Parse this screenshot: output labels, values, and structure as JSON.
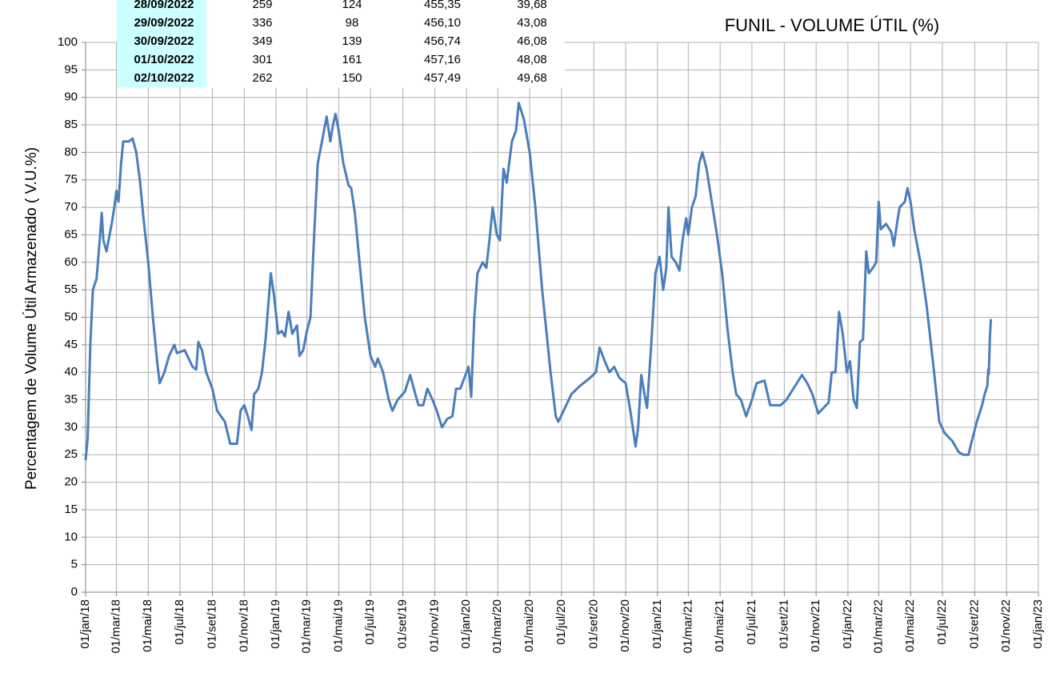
{
  "chart_data": {
    "type": "line",
    "title": "FUNIL - VOLUME ÚTIL (%)",
    "y_label": "Percentagem de Volume Útil Armazenado ( V.U.%)",
    "xlim": [
      "2018-01-01",
      "2023-01-01"
    ],
    "xticks": [
      {
        "value": "2018-01-01",
        "label": "01/jan/18"
      },
      {
        "value": "2018-03-01",
        "label": "01/mar/18"
      },
      {
        "value": "2018-05-01",
        "label": "01/mai/18"
      },
      {
        "value": "2018-07-01",
        "label": "01/jul/18"
      },
      {
        "value": "2018-09-01",
        "label": "01/set/18"
      },
      {
        "value": "2018-11-01",
        "label": "01/nov/18"
      },
      {
        "value": "2019-01-01",
        "label": "01/jan/19"
      },
      {
        "value": "2019-03-01",
        "label": "01/mar/19"
      },
      {
        "value": "2019-05-01",
        "label": "01/mai/19"
      },
      {
        "value": "2019-07-01",
        "label": "01/jul/19"
      },
      {
        "value": "2019-09-01",
        "label": "01/set/19"
      },
      {
        "value": "2019-11-01",
        "label": "01/nov/19"
      },
      {
        "value": "2020-01-01",
        "label": "01/jan/20"
      },
      {
        "value": "2020-03-01",
        "label": "01/mar/20"
      },
      {
        "value": "2020-05-01",
        "label": "01/mai/20"
      },
      {
        "value": "2020-07-01",
        "label": "01/jul/20"
      },
      {
        "value": "2020-09-01",
        "label": "01/set/20"
      },
      {
        "value": "2020-11-01",
        "label": "01/nov/20"
      },
      {
        "value": "2021-01-01",
        "label": "01/jan/21"
      },
      {
        "value": "2021-03-01",
        "label": "01/mar/21"
      },
      {
        "value": "2021-05-01",
        "label": "01/mai/21"
      },
      {
        "value": "2021-07-01",
        "label": "01/jul/21"
      },
      {
        "value": "2021-09-01",
        "label": "01/set/21"
      },
      {
        "value": "2021-11-01",
        "label": "01/nov/21"
      },
      {
        "value": "2022-01-01",
        "label": "01/jan/22"
      },
      {
        "value": "2022-03-01",
        "label": "01/mar/22"
      },
      {
        "value": "2022-05-01",
        "label": "01/mai/22"
      },
      {
        "value": "2022-07-01",
        "label": "01/jul/22"
      },
      {
        "value": "2022-09-01",
        "label": "01/set/22"
      },
      {
        "value": "2022-11-01",
        "label": "01/nov/22"
      },
      {
        "value": "2023-01-01",
        "label": "01/jan/23"
      }
    ],
    "ylim": [
      0,
      100
    ],
    "yticks": [
      0,
      5,
      10,
      15,
      20,
      25,
      30,
      35,
      40,
      45,
      50,
      55,
      60,
      65,
      70,
      75,
      80,
      85,
      90,
      95,
      100
    ],
    "grid": true,
    "x": [
      "2018-01-01",
      "2018-01-05",
      "2018-01-10",
      "2018-01-15",
      "2018-01-22",
      "2018-01-28",
      "2018-02-01",
      "2018-02-04",
      "2018-02-10",
      "2018-02-14",
      "2018-02-20",
      "2018-02-25",
      "2018-03-01",
      "2018-03-05",
      "2018-03-10",
      "2018-03-14",
      "2018-03-25",
      "2018-04-01",
      "2018-04-08",
      "2018-04-15",
      "2018-04-22",
      "2018-05-01",
      "2018-05-10",
      "2018-05-18",
      "2018-05-23",
      "2018-06-01",
      "2018-06-10",
      "2018-06-20",
      "2018-06-25",
      "2018-07-10",
      "2018-07-25",
      "2018-08-01",
      "2018-08-05",
      "2018-08-12",
      "2018-08-20",
      "2018-09-01",
      "2018-09-10",
      "2018-09-25",
      "2018-10-05",
      "2018-10-18",
      "2018-10-25",
      "2018-11-01",
      "2018-11-08",
      "2018-11-15",
      "2018-11-20",
      "2018-11-28",
      "2018-12-05",
      "2018-12-12",
      "2018-12-22",
      "2018-12-28",
      "2019-01-05",
      "2019-01-12",
      "2019-01-18",
      "2019-01-25",
      "2019-02-01",
      "2019-02-10",
      "2019-02-15",
      "2019-02-22",
      "2019-03-01",
      "2019-03-08",
      "2019-03-15",
      "2019-03-22",
      "2019-04-01",
      "2019-04-08",
      "2019-04-15",
      "2019-04-20",
      "2019-04-25",
      "2019-05-01",
      "2019-05-10",
      "2019-05-20",
      "2019-05-25",
      "2019-06-01",
      "2019-06-10",
      "2019-06-20",
      "2019-07-01",
      "2019-07-10",
      "2019-07-15",
      "2019-07-25",
      "2019-08-05",
      "2019-08-12",
      "2019-08-22",
      "2019-09-05",
      "2019-09-15",
      "2019-09-25",
      "2019-10-01",
      "2019-10-10",
      "2019-10-18",
      "2019-10-28",
      "2019-11-05",
      "2019-11-15",
      "2019-11-25",
      "2019-12-05",
      "2019-12-12",
      "2019-12-20",
      "2019-12-28",
      "2020-01-05",
      "2020-01-10",
      "2020-01-16",
      "2020-01-22",
      "2020-02-01",
      "2020-02-08",
      "2020-02-14",
      "2020-02-20",
      "2020-02-28",
      "2020-03-05",
      "2020-03-12",
      "2020-03-18",
      "2020-03-28",
      "2020-04-05",
      "2020-04-10",
      "2020-04-20",
      "2020-05-01",
      "2020-05-12",
      "2020-05-25",
      "2020-06-10",
      "2020-06-20",
      "2020-06-25",
      "2020-07-05",
      "2020-07-20",
      "2020-08-05",
      "2020-08-25",
      "2020-09-05",
      "2020-09-12",
      "2020-09-22",
      "2020-10-01",
      "2020-10-10",
      "2020-10-20",
      "2020-11-01",
      "2020-11-10",
      "2020-11-20",
      "2020-11-25",
      "2020-12-01",
      "2020-12-07",
      "2020-12-12",
      "2020-12-20",
      "2020-12-28",
      "2021-01-05",
      "2021-01-12",
      "2021-01-18",
      "2021-01-22",
      "2021-01-28",
      "2021-02-05",
      "2021-02-12",
      "2021-02-18",
      "2021-02-25",
      "2021-03-01",
      "2021-03-08",
      "2021-03-15",
      "2021-03-22",
      "2021-03-28",
      "2021-04-05",
      "2021-04-15",
      "2021-04-25",
      "2021-05-05",
      "2021-05-15",
      "2021-05-25",
      "2021-06-01",
      "2021-06-10",
      "2021-06-20",
      "2021-07-01",
      "2021-07-10",
      "2021-07-25",
      "2021-08-05",
      "2021-08-25",
      "2021-09-05",
      "2021-09-15",
      "2021-09-25",
      "2021-10-05",
      "2021-10-15",
      "2021-10-25",
      "2021-11-05",
      "2021-11-15",
      "2021-11-25",
      "2021-12-01",
      "2021-12-08",
      "2021-12-15",
      "2021-12-22",
      "2021-12-30",
      "2022-01-05",
      "2022-01-12",
      "2022-01-18",
      "2022-01-24",
      "2022-01-30",
      "2022-02-05",
      "2022-02-10",
      "2022-02-18",
      "2022-02-24",
      "2022-03-01",
      "2022-03-05",
      "2022-03-15",
      "2022-03-25",
      "2022-03-30",
      "2022-04-05",
      "2022-04-10",
      "2022-04-20",
      "2022-04-25",
      "2022-05-01",
      "2022-05-08",
      "2022-05-20",
      "2022-06-01",
      "2022-06-15",
      "2022-06-25",
      "2022-07-05",
      "2022-07-20",
      "2022-08-01",
      "2022-08-10",
      "2022-08-20",
      "2022-08-25",
      "2022-09-05",
      "2022-09-15",
      "2022-09-20",
      "2022-09-25",
      "2022-09-27",
      "2022-09-28",
      "2022-09-29",
      "2022-09-30",
      "2022-10-01",
      "2022-10-02"
    ],
    "series": [
      {
        "color": "#4a7ebb",
        "values": [
          24,
          28,
          45,
          55,
          57,
          64,
          69,
          64,
          62,
          64,
          67,
          70,
          73,
          71,
          78,
          82,
          82,
          82.5,
          80,
          75,
          68,
          60,
          50,
          42,
          38,
          40,
          43,
          45,
          43.5,
          44,
          41,
          40.5,
          45.5,
          44,
          40,
          37,
          33,
          31,
          27,
          27,
          33,
          34,
          32,
          29.5,
          36,
          37,
          40,
          46,
          58,
          54,
          47,
          47.5,
          46.5,
          51,
          47,
          48.5,
          43,
          44,
          47.5,
          50,
          65,
          78,
          83,
          86.5,
          82,
          85,
          87,
          84,
          78,
          74,
          73.5,
          69,
          60,
          50,
          43,
          41,
          42.5,
          40,
          35,
          33,
          35,
          36.5,
          39.5,
          36,
          34,
          34,
          37,
          35,
          33,
          30,
          31.5,
          32,
          37,
          37,
          39,
          41,
          35.5,
          50,
          58,
          60,
          59,
          64,
          70,
          65,
          64,
          77,
          74.5,
          82,
          84,
          89,
          86,
          80,
          70,
          55,
          40,
          32,
          31,
          33,
          36,
          37.5,
          39,
          40,
          44.5,
          42,
          40,
          41,
          39,
          38,
          33,
          26.5,
          30,
          39.5,
          36,
          33.5,
          45,
          58,
          61,
          55,
          59,
          70,
          61,
          60,
          58.5,
          64,
          68,
          65,
          70,
          72,
          78,
          80,
          77,
          71,
          65,
          58,
          48,
          40,
          36,
          35,
          32,
          35,
          38,
          38.5,
          34,
          34,
          35,
          36.5,
          38,
          39.5,
          38,
          36,
          32.5,
          33.5,
          34.5,
          40,
          40,
          51,
          47,
          40,
          42,
          35,
          33.5,
          45.5,
          46,
          62,
          58,
          59,
          60,
          71,
          66,
          67,
          65.5,
          63,
          67,
          70,
          71,
          73.5,
          71,
          66,
          60,
          52,
          40,
          31,
          29,
          27.5,
          25.5,
          25,
          25,
          27,
          31,
          34,
          36,
          37.5,
          40.5,
          39.68,
          43.08,
          46.08,
          48.08,
          49.68
        ]
      }
    ]
  },
  "table": {
    "rows": [
      [
        "28/09/2022",
        "259",
        "124",
        "455,35",
        "39,68"
      ],
      [
        "29/09/2022",
        "336",
        "98",
        "456,10",
        "43,08"
      ],
      [
        "30/09/2022",
        "349",
        "139",
        "456,74",
        "46,08"
      ],
      [
        "01/10/2022",
        "301",
        "161",
        "457,16",
        "48,08"
      ],
      [
        "02/10/2022",
        "262",
        "150",
        "457,49",
        "49,68"
      ]
    ]
  }
}
